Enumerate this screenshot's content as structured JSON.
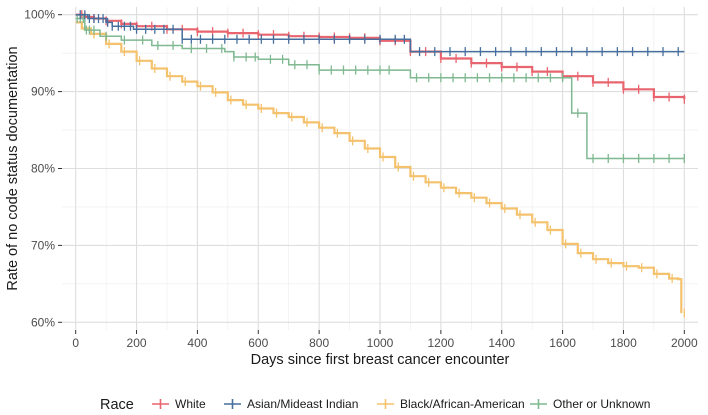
{
  "chart_data": {
    "type": "line",
    "subtype": "kaplan-meier step curves with censor marks",
    "title": "",
    "xlabel": "Days since first breast cancer encounter",
    "ylabel": "Rate of no code status documentation",
    "xlim": [
      -45,
      2045
    ],
    "ylim": [
      0.59,
      1.01
    ],
    "x_ticks": [
      0,
      200,
      400,
      600,
      800,
      1000,
      1200,
      1400,
      1600,
      1800,
      2000
    ],
    "x_tick_labels": [
      "0",
      "200",
      "400",
      "600",
      "800",
      "1000",
      "1200",
      "1400",
      "1600",
      "1800",
      "2000"
    ],
    "y_ticks": [
      0.6,
      0.7,
      0.8,
      0.9,
      1.0
    ],
    "y_tick_labels": [
      "60%",
      "70%",
      "80%",
      "90%",
      "100%"
    ],
    "grid": true,
    "legend": {
      "title": "Race",
      "position": "bottom"
    },
    "series": [
      {
        "name": "White",
        "color": "#e8646e",
        "linewidth": 2.2,
        "x": [
          0,
          30,
          60,
          100,
          150,
          200,
          300,
          400,
          500,
          600,
          700,
          800,
          900,
          1000,
          1100,
          1200,
          1300,
          1400,
          1500,
          1600,
          1700,
          1800,
          1900,
          2000
        ],
        "y": [
          1.0,
          0.997,
          0.995,
          0.992,
          0.988,
          0.985,
          0.981,
          0.978,
          0.976,
          0.974,
          0.972,
          0.971,
          0.97,
          0.966,
          0.952,
          0.943,
          0.937,
          0.932,
          0.926,
          0.92,
          0.912,
          0.903,
          0.893,
          0.89
        ],
        "censor_x": [
          20,
          60,
          100,
          150,
          200,
          250,
          300,
          350,
          400,
          450,
          500,
          550,
          600,
          650,
          700,
          750,
          800,
          850,
          900,
          950,
          1000,
          1050,
          1100,
          1150,
          1200,
          1250,
          1300,
          1350,
          1400,
          1450,
          1500,
          1550,
          1600,
          1650,
          1700,
          1750,
          1800,
          1850,
          1900,
          1950,
          2000
        ]
      },
      {
        "name": "Asian/Mideast Indian",
        "color": "#466f9d",
        "linewidth": 1.5,
        "x": [
          0,
          40,
          100,
          120,
          190,
          350,
          1100,
          2000
        ],
        "y": [
          1.0,
          0.995,
          0.99,
          0.985,
          0.981,
          0.968,
          0.952,
          0.952
        ],
        "censor_x": [
          15,
          30,
          45,
          60,
          75,
          90,
          105,
          120,
          140,
          160,
          180,
          200,
          230,
          260,
          290,
          320,
          350,
          380,
          410,
          450,
          490,
          530,
          570,
          610,
          650,
          700,
          750,
          800,
          850,
          900,
          950,
          1000,
          1050,
          1080,
          1130,
          1180,
          1230,
          1280,
          1330,
          1380,
          1430,
          1480,
          1530,
          1580,
          1630,
          1680,
          1730,
          1780,
          1830,
          1880,
          1930,
          1980
        ]
      },
      {
        "name": "Black/African-American",
        "color": "#f4c26d",
        "linewidth": 2.2,
        "x": [
          0,
          20,
          50,
          100,
          150,
          200,
          250,
          300,
          350,
          400,
          450,
          500,
          550,
          600,
          650,
          700,
          750,
          800,
          850,
          900,
          950,
          1000,
          1050,
          1100,
          1150,
          1200,
          1250,
          1300,
          1350,
          1400,
          1450,
          1500,
          1550,
          1600,
          1650,
          1700,
          1750,
          1800,
          1850,
          1900,
          1950,
          1980,
          1990
        ],
        "y": [
          0.99,
          0.982,
          0.975,
          0.962,
          0.952,
          0.94,
          0.93,
          0.92,
          0.913,
          0.907,
          0.899,
          0.889,
          0.883,
          0.878,
          0.872,
          0.867,
          0.86,
          0.853,
          0.846,
          0.836,
          0.826,
          0.815,
          0.802,
          0.79,
          0.782,
          0.775,
          0.768,
          0.762,
          0.755,
          0.748,
          0.74,
          0.73,
          0.72,
          0.702,
          0.69,
          0.682,
          0.677,
          0.673,
          0.671,
          0.663,
          0.657,
          0.656,
          0.612
        ],
        "censor_x": [
          60,
          110,
          160,
          210,
          260,
          310,
          360,
          410,
          460,
          510,
          560,
          610,
          660,
          710,
          760,
          810,
          860,
          910,
          960,
          1010,
          1060,
          1110,
          1160,
          1210,
          1260,
          1310,
          1360,
          1410,
          1460,
          1510,
          1560,
          1610,
          1660,
          1710,
          1760,
          1810,
          1860,
          1910,
          1960,
          2000
        ]
      },
      {
        "name": "Other or Unknown",
        "color": "#7fb891",
        "linewidth": 1.5,
        "x": [
          0,
          30,
          80,
          150,
          250,
          350,
          490,
          520,
          600,
          700,
          800,
          1100,
          1600,
          1630,
          1680,
          2000
        ],
        "y": [
          0.995,
          0.98,
          0.972,
          0.967,
          0.96,
          0.956,
          0.952,
          0.945,
          0.942,
          0.935,
          0.928,
          0.918,
          0.918,
          0.872,
          0.813,
          0.813
        ],
        "censor_x": [
          5,
          15,
          25,
          35,
          45,
          60,
          100,
          160,
          220,
          270,
          320,
          380,
          430,
          480,
          520,
          560,
          590,
          640,
          680,
          720,
          760,
          800,
          840,
          880,
          920,
          960,
          1000,
          1030,
          1120,
          1160,
          1200,
          1240,
          1280,
          1320,
          1360,
          1400,
          1440,
          1480,
          1520,
          1560,
          1600,
          1650,
          1700,
          1750,
          1800,
          1850,
          1900,
          1950,
          2000
        ]
      }
    ]
  }
}
